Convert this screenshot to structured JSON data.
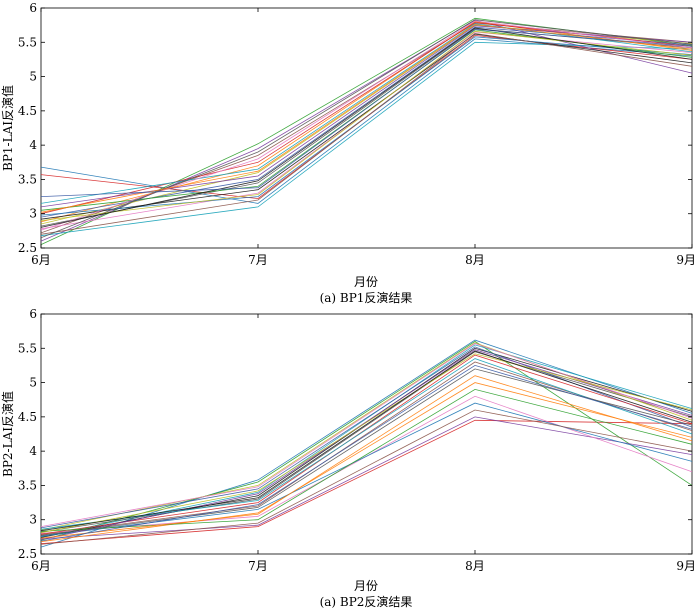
{
  "chart_data": [
    {
      "type": "line",
      "caption": "(a) BP1反演结果",
      "xlabel": "月份",
      "ylabel": "BP1-LAI反演值",
      "categories": [
        "6月",
        "7月",
        "8月",
        "9月"
      ],
      "ylim": [
        2.5,
        6
      ],
      "yticks": [
        "2.5",
        "3",
        "3.5",
        "4",
        "4.5",
        "5",
        "5.5",
        "6"
      ],
      "grid": false,
      "legend": "none",
      "series_colors": [
        "#1f77b4",
        "#d62728",
        "#2ca02c",
        "#7a3fa0",
        "#17a2b8",
        "#8c564b",
        "#e377c2",
        "#555555",
        "#bcbd22",
        "#ff7f0e",
        "#1a1a1a",
        "#3b5ba5"
      ],
      "series": [
        {
          "values": [
            3.68,
            3.15,
            5.55,
            5.3
          ]
        },
        {
          "values": [
            3.57,
            3.22,
            5.6,
            5.25
          ]
        },
        {
          "values": [
            2.55,
            4.02,
            5.85,
            5.45
          ]
        },
        {
          "values": [
            2.6,
            3.95,
            5.82,
            5.05
          ]
        },
        {
          "values": [
            2.68,
            3.1,
            5.5,
            5.4
          ]
        },
        {
          "values": [
            2.72,
            3.85,
            5.78,
            5.5
          ]
        },
        {
          "values": [
            2.78,
            3.3,
            5.65,
            5.35
          ]
        },
        {
          "values": [
            2.82,
            3.45,
            5.7,
            5.42
          ]
        },
        {
          "values": [
            2.85,
            3.6,
            5.75,
            5.48
          ]
        },
        {
          "values": [
            2.88,
            3.7,
            5.8,
            5.38
          ]
        },
        {
          "values": [
            2.92,
            3.35,
            5.62,
            5.2
          ]
        },
        {
          "values": [
            2.95,
            3.5,
            5.72,
            5.46
          ]
        },
        {
          "values": [
            2.98,
            3.25,
            5.58,
            5.32
          ]
        },
        {
          "values": [
            3.0,
            3.75,
            5.79,
            5.44
          ]
        },
        {
          "values": [
            3.05,
            3.4,
            5.68,
            5.28
          ]
        },
        {
          "values": [
            3.1,
            3.55,
            5.74,
            5.5
          ]
        },
        {
          "values": [
            3.15,
            3.65,
            5.77,
            5.36
          ]
        },
        {
          "values": [
            2.7,
            3.2,
            5.63,
            5.15
          ]
        },
        {
          "values": [
            2.76,
            3.8,
            5.81,
            5.42
          ]
        },
        {
          "values": [
            2.65,
            3.9,
            5.83,
            5.47
          ]
        },
        {
          "values": [
            2.9,
            3.28,
            5.66,
            5.31
          ]
        },
        {
          "values": [
            3.02,
            3.62,
            5.76,
            5.4
          ]
        },
        {
          "values": [
            2.8,
            3.48,
            5.71,
            5.25
          ]
        },
        {
          "values": [
            3.25,
            3.38,
            5.69,
            5.44
          ]
        }
      ]
    },
    {
      "type": "line",
      "caption": "(a) BP2反演结果",
      "xlabel": "月份",
      "ylabel": "BP2-LAI反演值",
      "categories": [
        "6月",
        "7月",
        "8月",
        "9月"
      ],
      "ylim": [
        2.5,
        6
      ],
      "yticks": [
        "2.5",
        "3",
        "3.5",
        "4",
        "4.5",
        "5",
        "5.5",
        "6"
      ],
      "grid": false,
      "legend": "none",
      "series_colors": [
        "#1f77b4",
        "#d62728",
        "#2ca02c",
        "#7a3fa0",
        "#17a2b8",
        "#8c564b",
        "#e377c2",
        "#555555",
        "#bcbd22",
        "#ff7f0e",
        "#1a1a1a",
        "#3b5ba5"
      ],
      "series": [
        {
          "values": [
            2.6,
            3.58,
            5.62,
            4.55
          ]
        },
        {
          "values": [
            2.65,
            2.9,
            4.45,
            4.4
          ]
        },
        {
          "values": [
            2.7,
            3.55,
            5.6,
            3.5
          ]
        },
        {
          "values": [
            2.72,
            2.92,
            4.5,
            3.95
          ]
        },
        {
          "values": [
            2.75,
            3.4,
            5.55,
            4.62
          ]
        },
        {
          "values": [
            2.78,
            3.2,
            5.3,
            4.3
          ]
        },
        {
          "values": [
            2.8,
            3.05,
            4.8,
            3.7
          ]
        },
        {
          "values": [
            2.82,
            3.3,
            5.45,
            4.5
          ]
        },
        {
          "values": [
            2.85,
            3.5,
            5.58,
            4.45
          ]
        },
        {
          "values": [
            2.68,
            3.1,
            5.0,
            4.2
          ]
        },
        {
          "values": [
            2.74,
            3.35,
            5.5,
            4.58
          ]
        },
        {
          "values": [
            2.88,
            3.45,
            5.52,
            4.35
          ]
        },
        {
          "values": [
            2.76,
            3.15,
            4.7,
            3.85
          ]
        },
        {
          "values": [
            2.79,
            3.25,
            5.4,
            4.4
          ]
        },
        {
          "values": [
            2.83,
            3.0,
            4.9,
            4.1
          ]
        },
        {
          "values": [
            2.71,
            3.38,
            5.48,
            4.52
          ]
        },
        {
          "values": [
            2.86,
            3.28,
            5.35,
            4.25
          ]
        },
        {
          "values": [
            2.64,
            2.95,
            4.6,
            4.0
          ]
        },
        {
          "values": [
            2.9,
            3.48,
            5.57,
            4.48
          ]
        },
        {
          "values": [
            2.77,
            3.18,
            5.2,
            4.38
          ]
        },
        {
          "values": [
            2.81,
            3.42,
            5.42,
            4.6
          ]
        },
        {
          "values": [
            2.73,
            3.08,
            5.1,
            4.15
          ]
        },
        {
          "values": [
            2.84,
            3.32,
            5.46,
            4.42
          ]
        },
        {
          "values": [
            2.69,
            3.22,
            5.25,
            4.32
          ]
        }
      ]
    }
  ]
}
